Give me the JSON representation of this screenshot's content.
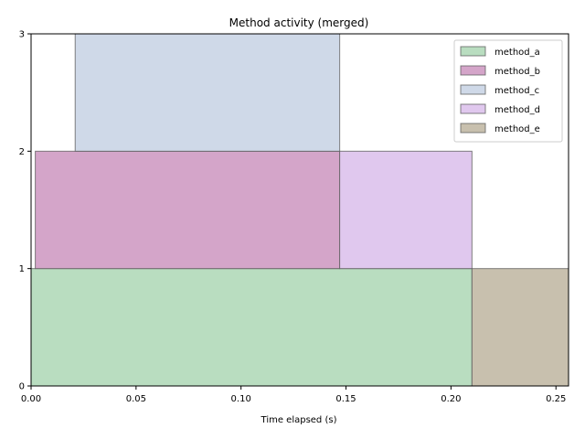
{
  "chart_data": {
    "type": "bar",
    "title": "Method activity (merged)",
    "xlabel": "Time elapsed (s)",
    "ylabel": "",
    "xlim": [
      0.0,
      0.256
    ],
    "ylim": [
      0,
      3
    ],
    "xticks": [
      0.0,
      0.05,
      0.1,
      0.15,
      0.2,
      0.25
    ],
    "xtick_labels": [
      "0.00",
      "0.05",
      "0.10",
      "0.15",
      "0.20",
      "0.25"
    ],
    "yticks": [
      0,
      1,
      2,
      3
    ],
    "ytick_labels": [
      "0",
      "1",
      "2",
      "3"
    ],
    "grid": false,
    "legend_position": "upper right",
    "series": [
      {
        "name": "method_a",
        "color": "#b9ddc0",
        "intervals": [
          {
            "start": 0.0,
            "end": 0.21,
            "level": 0
          }
        ]
      },
      {
        "name": "method_b",
        "color": "#d4a5c9",
        "intervals": [
          {
            "start": 0.002,
            "end": 0.147,
            "level": 1
          }
        ]
      },
      {
        "name": "method_c",
        "color": "#cfd9e8",
        "intervals": [
          {
            "start": 0.021,
            "end": 0.147,
            "level": 2
          }
        ]
      },
      {
        "name": "method_d",
        "color": "#e0c8ee",
        "intervals": [
          {
            "start": 0.147,
            "end": 0.21,
            "level": 1
          }
        ]
      },
      {
        "name": "method_e",
        "color": "#c8c0ae",
        "intervals": [
          {
            "start": 0.21,
            "end": 0.256,
            "level": 0
          }
        ]
      }
    ]
  }
}
